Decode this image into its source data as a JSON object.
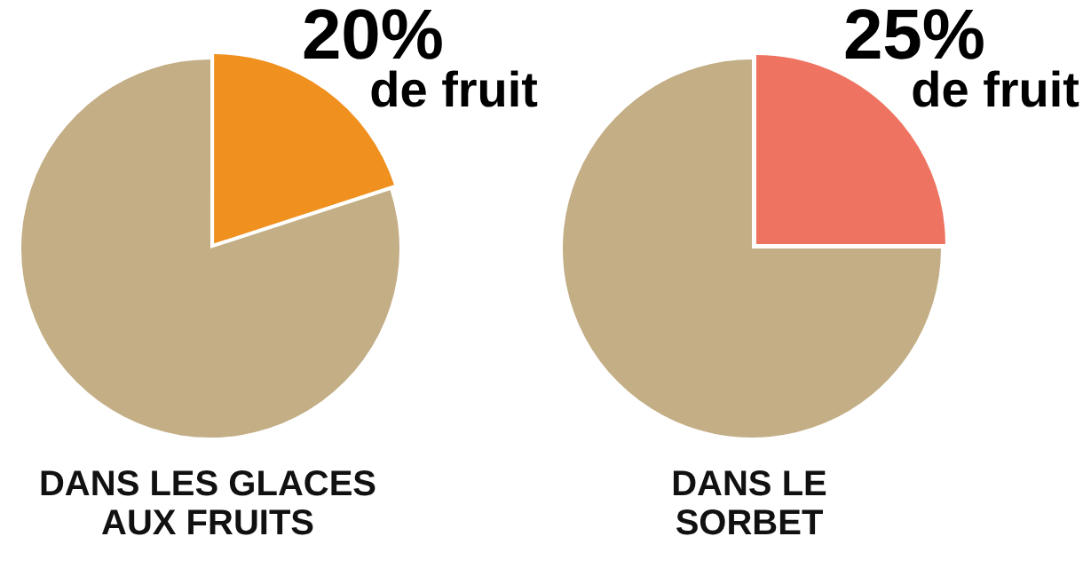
{
  "chart_data": [
    {
      "type": "pie",
      "title": "DANS LES GLACES AUX FRUITS",
      "categories": [
        "de fruit",
        null
      ],
      "values": [
        20,
        80
      ],
      "colors": [
        "#f0901e",
        "#c3ae86"
      ],
      "value_labels": [
        "20%",
        null
      ],
      "legend": false
    },
    {
      "type": "pie",
      "title": "DANS LE SORBET",
      "categories": [
        "de fruit",
        null
      ],
      "values": [
        25,
        75
      ],
      "colors": [
        "#ee7461",
        "#c3ae86"
      ],
      "value_labels": [
        "25%",
        null
      ],
      "legend": false
    }
  ]
}
